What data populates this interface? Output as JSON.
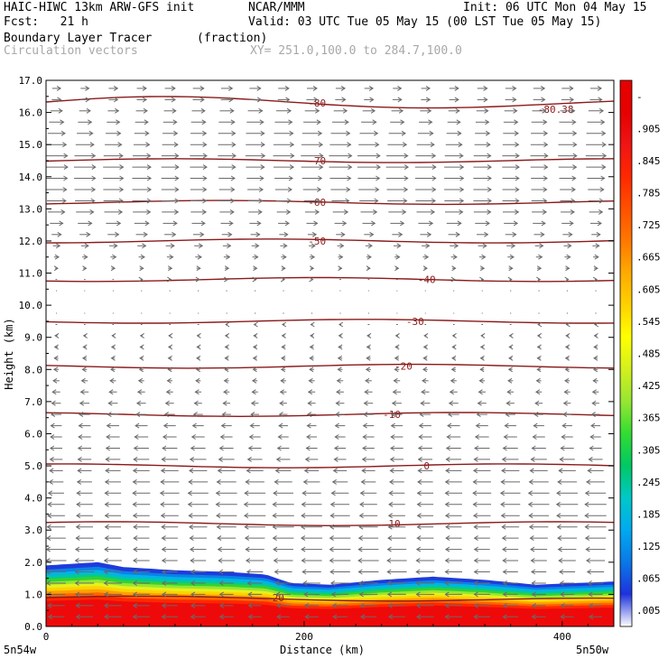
{
  "header": {
    "model": "HAIC-HIWC 13km ARW-GFS init",
    "org": "NCAR/MMM",
    "init": "Init: 06 UTC Mon 04 May 15",
    "fcst": "Fcst:   21 h",
    "valid": "Valid: 03 UTC Tue 05 May 15 (00 LST Tue 05 May 15)",
    "field": "Boundary Layer Tracer",
    "field_units": "(fraction)",
    "vectors": "Circulation vectors",
    "xy": "XY= 251.0,100.0 to 284.7,100.0"
  },
  "chart_data": {
    "type": "heatmap",
    "title": "Boundary Layer Tracer",
    "xlabel": "Distance (km)",
    "ylabel": "Height (km)",
    "xlim": [
      0,
      440
    ],
    "ylim": [
      0,
      17
    ],
    "x_ticks": [
      0,
      200,
      400
    ],
    "y_ticks": [
      0.0,
      1.0,
      2.0,
      3.0,
      4.0,
      5.0,
      6.0,
      7.0,
      8.0,
      9.0,
      10.0,
      11.0,
      12.0,
      13.0,
      14.0,
      15.0,
      16.0,
      17.0
    ],
    "left_location": "5n54w",
    "right_location": "5n50w",
    "colorbar": {
      "labels": [
        ".005",
        ".065",
        ".125",
        ".185",
        ".245",
        ".305",
        ".365",
        ".425",
        ".485",
        ".545",
        ".605",
        ".665",
        ".725",
        ".785",
        ".845",
        ".905",
        "-"
      ],
      "colors": [
        "#ffffff",
        "#1e32dc",
        "#0a78e6",
        "#00aaf0",
        "#00c8c8",
        "#00c864",
        "#32dc32",
        "#96e632",
        "#d2f01e",
        "#ffff00",
        "#ffd200",
        "#ffaa00",
        "#ff7800",
        "#ff5000",
        "#ff2800",
        "#f01414",
        "#e60000"
      ]
    },
    "tracer_top_height_km": [
      {
        "x": 0,
        "z": 1.9
      },
      {
        "x": 20,
        "z": 1.95
      },
      {
        "x": 40,
        "z": 2.0
      },
      {
        "x": 60,
        "z": 1.85
      },
      {
        "x": 100,
        "z": 1.75
      },
      {
        "x": 140,
        "z": 1.7
      },
      {
        "x": 170,
        "z": 1.62
      },
      {
        "x": 190,
        "z": 1.35
      },
      {
        "x": 220,
        "z": 1.3
      },
      {
        "x": 260,
        "z": 1.45
      },
      {
        "x": 300,
        "z": 1.55
      },
      {
        "x": 340,
        "z": 1.45
      },
      {
        "x": 380,
        "z": 1.3
      },
      {
        "x": 410,
        "z": 1.35
      },
      {
        "x": 440,
        "z": 1.4
      }
    ],
    "temperature_contours": [
      {
        "value": 20,
        "label": "20",
        "height_km": 0.9
      },
      {
        "value": 10,
        "label": "10",
        "height_km": 3.2
      },
      {
        "value": 0,
        "label": "0",
        "height_km": 5.0
      },
      {
        "value": -10,
        "label": "-10",
        "height_km": 6.6
      },
      {
        "value": -20,
        "label": "-20",
        "height_km": 8.1
      },
      {
        "value": -30,
        "label": "-30",
        "height_km": 9.5
      },
      {
        "value": -40,
        "label": "-40",
        "height_km": 10.8
      },
      {
        "value": -50,
        "label": "-50",
        "height_km": 12.0
      },
      {
        "value": -60,
        "label": "-60",
        "height_km": 13.2
      },
      {
        "value": -70,
        "label": "-70",
        "height_km": 14.5
      },
      {
        "value": -80,
        "label": "-80",
        "height_km": 16.3
      }
    ],
    "min_label": "-80.38",
    "wind_vectors_u_by_height": [
      {
        "z": 0.5,
        "u": -1.8
      },
      {
        "z": 2.0,
        "u": -2.2
      },
      {
        "z": 4.0,
        "u": -2.3
      },
      {
        "z": 5.0,
        "u": -1.8
      },
      {
        "z": 6.5,
        "u": -1.2
      },
      {
        "z": 8.0,
        "u": -0.5
      },
      {
        "z": 9.5,
        "u": -0.2
      },
      {
        "z": 11.0,
        "u": 0.3
      },
      {
        "z": 12.0,
        "u": 1.0
      },
      {
        "z": 13.0,
        "u": 2.0
      },
      {
        "z": 14.5,
        "u": 2.5
      },
      {
        "z": 15.5,
        "u": 2.0
      },
      {
        "z": 16.5,
        "u": 1.2
      }
    ],
    "grid": false
  }
}
